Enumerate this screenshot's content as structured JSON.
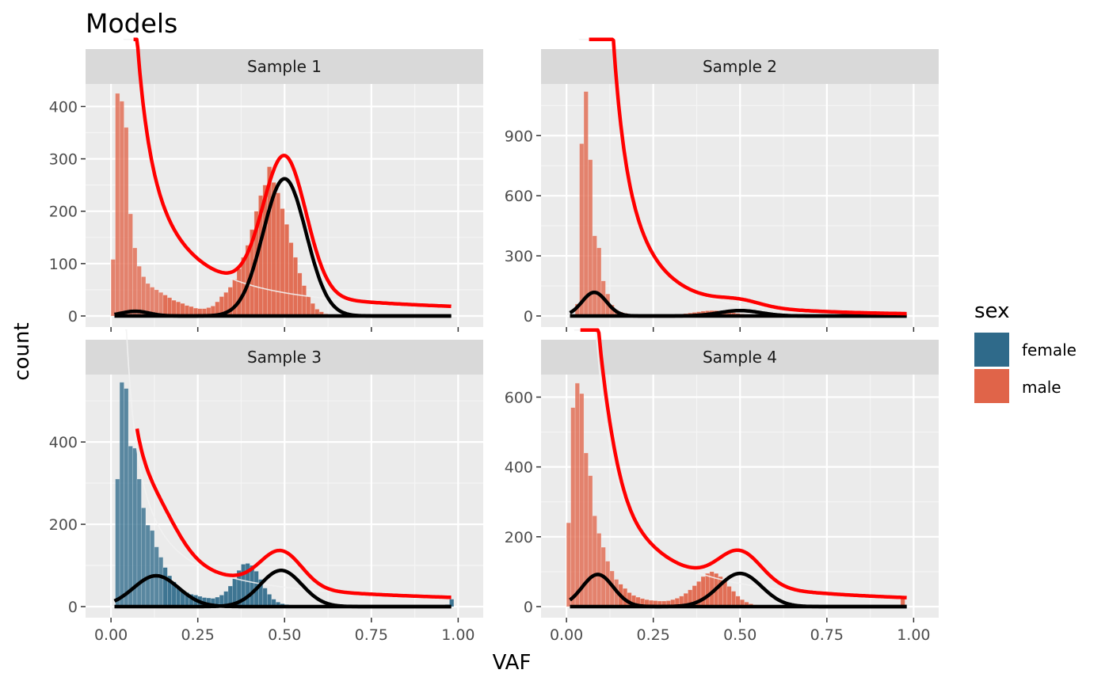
{
  "chart_data": {
    "type": "histogram",
    "title": "Models",
    "xlabel": "VAF",
    "ylabel": "count",
    "xlim": [
      0,
      1
    ],
    "x_ticks": [
      0,
      0.25,
      0.5,
      0.75,
      1
    ],
    "x_tick_labels": [
      "0.00",
      "0.25",
      "0.50",
      "0.75",
      "1.00"
    ],
    "grid": true,
    "facets": "free_y",
    "legend": {
      "title": "sex",
      "position": "right",
      "entries": [
        {
          "label": "female",
          "color": "#2f6a8a"
        },
        {
          "label": "male",
          "color": "#e06449"
        }
      ]
    },
    "colors": {
      "female": "#2f6a8a",
      "male": "#e06449",
      "fit_total": "#ff0000",
      "fit_component": "#000000"
    },
    "panels": [
      {
        "strip": "Sample 1",
        "sex": "male",
        "ylim": [
          0,
          440
        ],
        "y_ticks": [
          0,
          100,
          200,
          300,
          400
        ],
        "bins": {
          "x0": 0.0,
          "width": 0.0125,
          "counts": [
            108,
            425,
            410,
            360,
            195,
            130,
            95,
            75,
            62,
            55,
            50,
            45,
            40,
            35,
            30,
            27,
            24,
            20,
            18,
            15,
            14,
            14,
            16,
            19,
            27,
            37,
            45,
            55,
            70,
            90,
            112,
            135,
            165,
            200,
            230,
            250,
            285,
            255,
            235,
            205,
            175,
            140,
            112,
            82,
            58,
            38,
            24,
            13,
            8,
            4,
            3,
            2,
            2,
            1,
            1,
            1,
            0,
            0,
            0,
            0,
            0,
            0,
            0,
            0,
            0,
            0,
            0,
            0,
            0,
            0,
            0,
            0,
            0,
            0,
            0,
            0,
            0,
            0,
            0,
            0
          ]
        },
        "components": [
          {
            "name": "",
            "type": "powerlaw",
            "a": 18,
            "p": 1.3,
            "cut": 0.065
          },
          {
            "name": "",
            "type": "gauss",
            "A": 9,
            "mu": 0.07,
            "sd": 0.04
          },
          {
            "name": "",
            "type": "gauss",
            "A": 262,
            "mu": 0.5,
            "sd": 0.062
          }
        ]
      },
      {
        "strip": "Sample 2",
        "sex": "male",
        "ylim": [
          0,
          1150
        ],
        "y_ticks": [
          0,
          300,
          600,
          900
        ],
        "bins": {
          "x0": 0.0,
          "width": 0.0125,
          "counts": [
            0,
            0,
            60,
            860,
            1120,
            780,
            400,
            340,
            175,
            110,
            55,
            30,
            20,
            14,
            10,
            8,
            6,
            5,
            4,
            4,
            3,
            3,
            3,
            4,
            5,
            7,
            9,
            12,
            15,
            18,
            21,
            24,
            26,
            27,
            27,
            25,
            22,
            19,
            16,
            13,
            10,
            8,
            6,
            4,
            3,
            2,
            2,
            1,
            1,
            1,
            0,
            0,
            0,
            0,
            0,
            0,
            0,
            0,
            0,
            0,
            0,
            0,
            0,
            0,
            0,
            0,
            0,
            0,
            0,
            0,
            0,
            0,
            0,
            0,
            0,
            0,
            0,
            0,
            0,
            0
          ]
        },
        "components": [
          {
            "name": "",
            "type": "powerlaw",
            "a": 11,
            "p": 2.4,
            "cut": 0.065
          },
          {
            "name": "",
            "type": "gauss",
            "A": 118,
            "mu": 0.08,
            "sd": 0.035
          },
          {
            "name": "",
            "type": "gauss",
            "A": 27,
            "mu": 0.5,
            "sd": 0.06
          }
        ]
      },
      {
        "strip": "Sample 3",
        "sex": "female",
        "ylim": [
          0,
          560
        ],
        "y_ticks": [
          0,
          200,
          400
        ],
        "bins": {
          "x0": 0.0,
          "width": 0.0125,
          "counts": [
            0,
            310,
            545,
            530,
            390,
            385,
            310,
            240,
            198,
            185,
            145,
            120,
            95,
            75,
            60,
            48,
            40,
            34,
            30,
            28,
            25,
            22,
            21,
            20,
            23,
            28,
            37,
            50,
            68,
            88,
            103,
            105,
            100,
            86,
            66,
            45,
            30,
            18,
            11,
            7,
            5,
            4,
            3,
            3,
            2,
            2,
            2,
            2,
            1,
            1,
            1,
            1,
            1,
            1,
            1,
            1,
            1,
            1,
            1,
            1,
            1,
            1,
            1,
            1,
            1,
            1,
            1,
            1,
            1,
            1,
            1,
            1,
            1,
            1,
            1,
            1,
            1,
            5,
            18,
            0
          ]
        },
        "components": [
          {
            "name": "",
            "type": "powerlaw",
            "a": 22,
            "p": 1.1,
            "cut": 0.075
          },
          {
            "name": "",
            "type": "gauss",
            "A": 75,
            "mu": 0.13,
            "sd": 0.065
          },
          {
            "name": "",
            "type": "gauss",
            "A": 88,
            "mu": 0.49,
            "sd": 0.06
          }
        ]
      },
      {
        "strip": "Sample 4",
        "sex": "male",
        "ylim": [
          0,
          660
        ],
        "y_ticks": [
          0,
          200,
          400,
          600
        ],
        "bins": {
          "x0": 0.0,
          "width": 0.0125,
          "counts": [
            240,
            570,
            640,
            610,
            440,
            375,
            260,
            210,
            170,
            130,
            102,
            78,
            64,
            52,
            40,
            32,
            27,
            23,
            20,
            18,
            17,
            16,
            16,
            17,
            20,
            24,
            30,
            38,
            48,
            60,
            72,
            86,
            95,
            100,
            95,
            86,
            73,
            58,
            44,
            30,
            20,
            13,
            8,
            5,
            3,
            2,
            2,
            1,
            1,
            1,
            0,
            0,
            0,
            0,
            0,
            0,
            0,
            0,
            0,
            0,
            0,
            0,
            0,
            0,
            0,
            0,
            0,
            0,
            0,
            0,
            0,
            0,
            0,
            0,
            0,
            0,
            0,
            25,
            0,
            0
          ]
        },
        "components": [
          {
            "name": "",
            "type": "powerlaw",
            "a": 25,
            "p": 1.4,
            "cut": 0.04
          },
          {
            "name": "",
            "type": "gauss",
            "A": 92,
            "mu": 0.09,
            "sd": 0.045
          },
          {
            "name": "",
            "type": "gauss",
            "A": 95,
            "mu": 0.5,
            "sd": 0.062
          }
        ]
      }
    ]
  }
}
